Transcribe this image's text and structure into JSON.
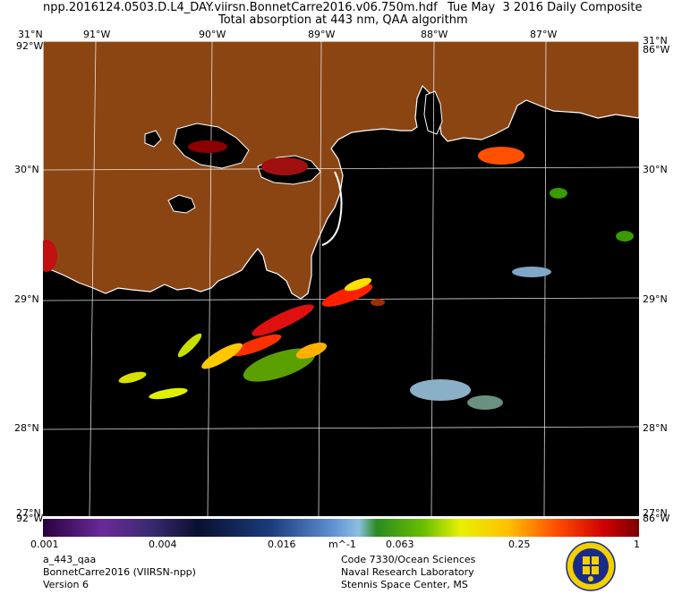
{
  "header": {
    "file_line": "npp.2016124.0503.D.L4_DAY.viirsn.BonnetCarre2016.v06.750m.hdf",
    "date_line": "Tue May  3 2016 Daily Composite",
    "product_line": "Total absorption at 443 nm, QAA algorithm"
  },
  "map": {
    "lon_labels": [
      "91°W",
      "90°W",
      "89°W",
      "88°W",
      "87°W"
    ],
    "lat_labels": [
      "30°N",
      "29°N",
      "28°N"
    ],
    "corner_top_left": "31°N",
    "corner_top_right": "31°N",
    "corner_bottom_left": "27°N",
    "corner_bottom_right": "27°N",
    "edge_w_label": "92°W",
    "edge_e_label": "86°W",
    "colors": {
      "land": "#8b4513",
      "water": "#000000",
      "coast": "#ffffff",
      "grid": "#ffffff"
    }
  },
  "colorbar": {
    "scale": "log",
    "ticks": [
      "0.001",
      "0.004",
      "0.016",
      "0.063",
      "0.25",
      "1"
    ],
    "unit": "m^-1"
  },
  "footer": {
    "left": [
      "a_443_qaa",
      "BonnetCarre2016 (VIIRSN-npp)",
      "Version 6"
    ],
    "right": [
      "Code 7330/Ocean Sciences",
      "Naval Research Laboratory",
      "Stennis Space Center, MS"
    ]
  }
}
